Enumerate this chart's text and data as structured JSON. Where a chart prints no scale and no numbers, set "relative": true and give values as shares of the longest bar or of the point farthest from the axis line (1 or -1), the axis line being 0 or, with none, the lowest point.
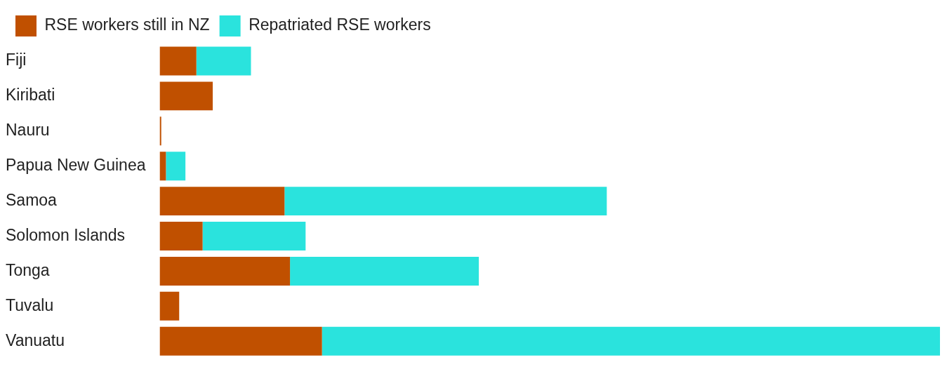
{
  "chart_data": {
    "type": "bar",
    "orientation": "horizontal",
    "stacked": true,
    "relative": true,
    "legend": "top left",
    "grid": false,
    "categories": [
      "Fiji",
      "Kiribati",
      "Nauru",
      "Papua New Guinea",
      "Samoa",
      "Solomon Islands",
      "Tonga",
      "Tuvalu",
      "Vanuatu"
    ],
    "series": [
      {
        "name": "RSE workers still in NZ",
        "color": "#c05000",
        "values": [
          0.047,
          0.068,
          0.002,
          0.008,
          0.16,
          0.055,
          0.167,
          0.025,
          0.208
        ]
      },
      {
        "name": "Repatriated RSE workers",
        "color": "#2ae3dd",
        "values": [
          0.07,
          0,
          0,
          0.025,
          0.413,
          0.132,
          0.242,
          0,
          0.792
        ]
      }
    ]
  }
}
